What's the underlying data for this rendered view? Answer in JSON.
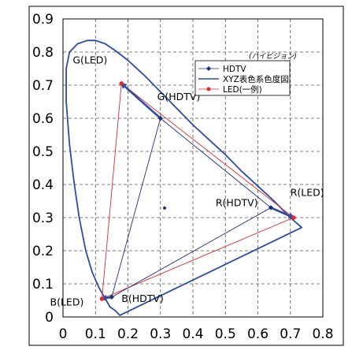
{
  "chart_data": {
    "type": "scatter",
    "title": "",
    "xlabel": "",
    "ylabel": "",
    "xlim": [
      0,
      0.8
    ],
    "ylim": [
      0,
      0.9
    ],
    "grid": true,
    "x_ticks": [
      "0",
      "0.1",
      "0.2",
      "0.3",
      "0.4",
      "0.5",
      "0.6",
      "0.7",
      "0.8"
    ],
    "y_ticks": [
      "0",
      "0.1",
      "0.2",
      "0.3",
      "0.4",
      "0.5",
      "0.6",
      "0.7",
      "0.8",
      "0.9"
    ],
    "legend": {
      "placement": "top-right",
      "title": "(ハイビジョン)",
      "entries": [
        {
          "label": "HDTV",
          "color": "#1a2f7a",
          "marker": "diamond"
        },
        {
          "label": "XYZ表色系色度図",
          "color": "#2a4ca8",
          "marker": "line"
        },
        {
          "label": "LED(一例)",
          "color": "#e02a2a",
          "marker": "circle"
        }
      ]
    },
    "series": [
      {
        "name": "HDTV",
        "color": "#1a2f7a",
        "points": [
          [
            0.3,
            0.6
          ],
          [
            0.64,
            0.33
          ],
          [
            0.15,
            0.06
          ]
        ],
        "extra_points": [
          [
            0.3127,
            0.329
          ]
        ]
      },
      {
        "name": "XYZ表色系色度図",
        "color": "#2a4ca8",
        "locus": [
          [
            0.175,
            0.005
          ],
          [
            0.16,
            0.02
          ],
          [
            0.145,
            0.03
          ],
          [
            0.13,
            0.055
          ],
          [
            0.11,
            0.09
          ],
          [
            0.09,
            0.135
          ],
          [
            0.07,
            0.2
          ],
          [
            0.05,
            0.3
          ],
          [
            0.035,
            0.4
          ],
          [
            0.02,
            0.52
          ],
          [
            0.01,
            0.65
          ],
          [
            0.01,
            0.75
          ],
          [
            0.02,
            0.8
          ],
          [
            0.045,
            0.825
          ],
          [
            0.075,
            0.835
          ],
          [
            0.1,
            0.835
          ],
          [
            0.13,
            0.825
          ],
          [
            0.16,
            0.805
          ],
          [
            0.2,
            0.775
          ],
          [
            0.25,
            0.73
          ],
          [
            0.3,
            0.68
          ],
          [
            0.35,
            0.63
          ],
          [
            0.4,
            0.58
          ],
          [
            0.45,
            0.535
          ],
          [
            0.5,
            0.49
          ],
          [
            0.55,
            0.44
          ],
          [
            0.6,
            0.395
          ],
          [
            0.65,
            0.35
          ],
          [
            0.7,
            0.3
          ],
          [
            0.735,
            0.27
          ]
        ]
      },
      {
        "name": "LED(一例)",
        "color": "#e02a2a",
        "points": [
          [
            0.18,
            0.705
          ],
          [
            0.71,
            0.3
          ],
          [
            0.12,
            0.055
          ]
        ]
      }
    ],
    "annotations": [
      {
        "text": "G(LED)",
        "x": 0.03,
        "y": 0.765
      },
      {
        "text": "G(HDTV)",
        "x": 0.29,
        "y": 0.655
      },
      {
        "text": "R(HDTV)",
        "x": 0.47,
        "y": 0.335
      },
      {
        "text": "R(LED)",
        "x": 0.7,
        "y": 0.365
      },
      {
        "text": "B(HDTV)",
        "x": 0.18,
        "y": 0.045
      },
      {
        "text": "B(LED)",
        "x": -0.04,
        "y": 0.035
      }
    ],
    "arrows": [
      {
        "from": [
          0.3,
          0.6
        ],
        "to": [
          0.18,
          0.705
        ]
      },
      {
        "from": [
          0.64,
          0.33
        ],
        "to": [
          0.71,
          0.3
        ]
      },
      {
        "from": [
          0.15,
          0.06
        ],
        "to": [
          0.12,
          0.055
        ]
      }
    ]
  }
}
